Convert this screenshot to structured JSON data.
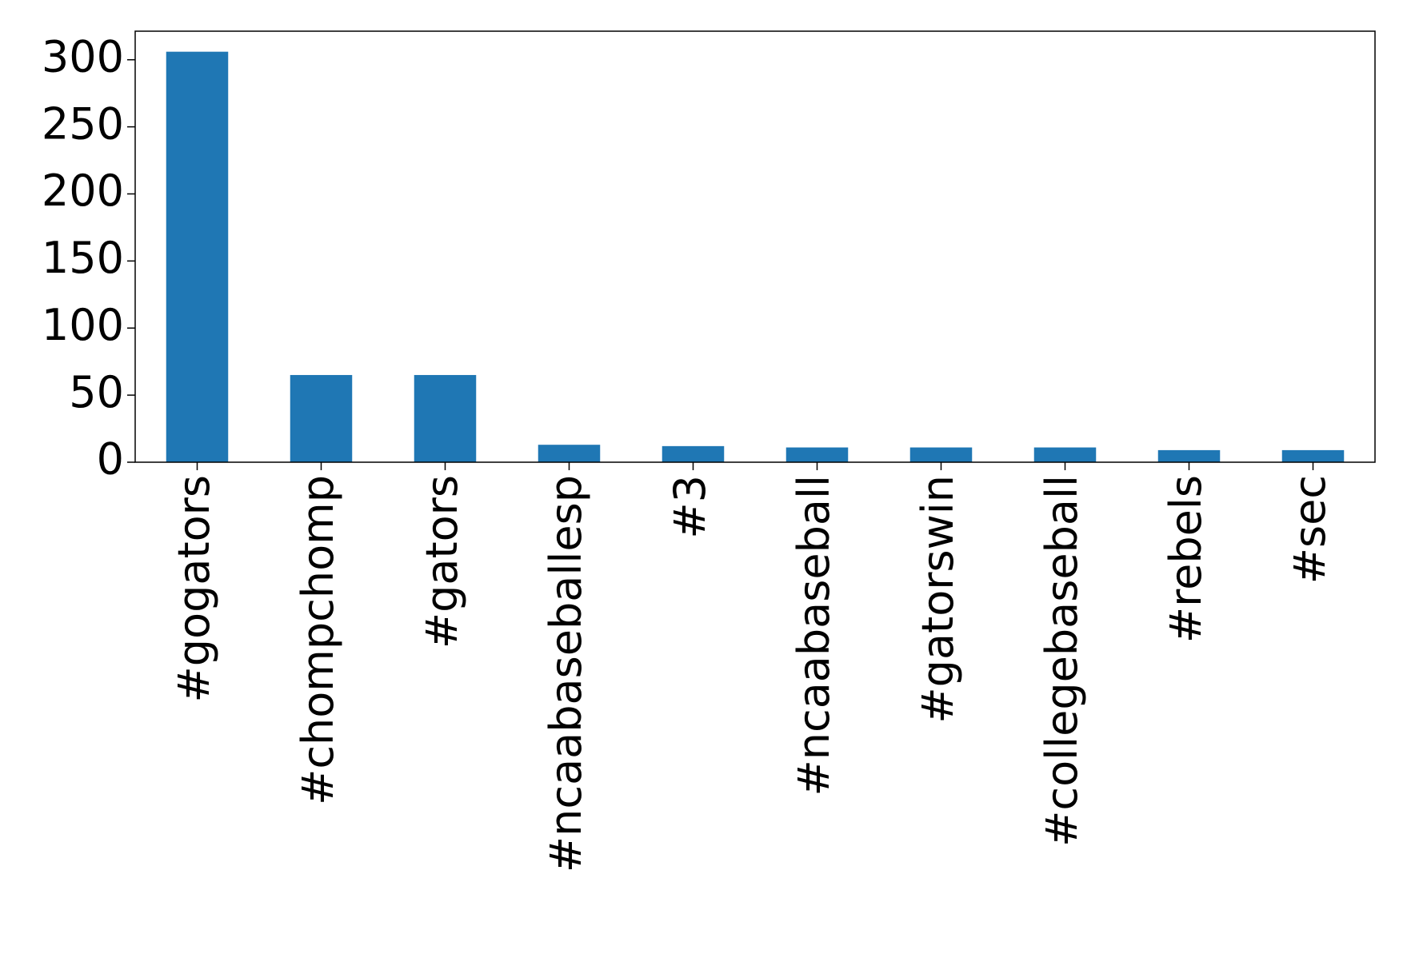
{
  "chart_data": {
    "type": "bar",
    "categories": [
      "#gogators",
      "#chompchomp",
      "#gators",
      "#ncaabaseballesp",
      "#3",
      "#ncaabaseball",
      "#gatorswin",
      "#collegebaseball",
      "#rebels",
      "#sec"
    ],
    "values": [
      306,
      65,
      65,
      13,
      12,
      11,
      11,
      11,
      9,
      9
    ],
    "color": "#1f77b4",
    "ylim": [
      0,
      321.3
    ],
    "yticks": [
      0,
      50,
      100,
      150,
      200,
      250,
      300
    ],
    "grid": false
  }
}
